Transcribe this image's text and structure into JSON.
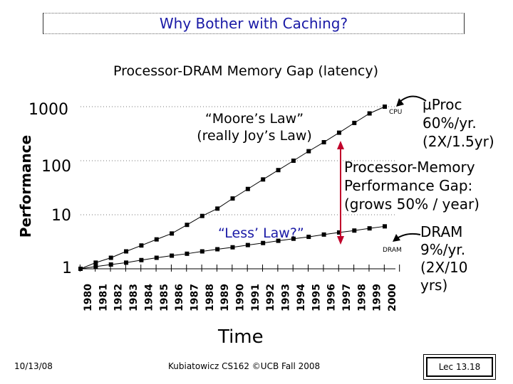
{
  "slide": {
    "title": "Why Bother with Caching?",
    "subtitle": "Processor-DRAM Memory Gap (latency)",
    "footer_date": "10/13/08",
    "footer_course": "Kubiatowicz CS162 ©UCB Fall 2008",
    "footer_lec": "Lec 13.18"
  },
  "annotations": {
    "moore_line1": "“Moore’s Law”",
    "moore_line2": "(really Joy’s Law)",
    "less_law": "“Less’ Law?”",
    "cpu_label": "CPU",
    "dram_label": "DRAM",
    "uproc_lines": [
      "µProc",
      "60%/yr.",
      "(2X/1.5yr)"
    ],
    "gap_lines": [
      "Processor-Memory",
      "Performance Gap:",
      "(grows 50% / year)"
    ],
    "dram_lines": [
      "DRAM",
      "9%/yr.",
      "(2X/10",
      "yrs)"
    ]
  },
  "chart_data": {
    "type": "line",
    "xlabel": "Time",
    "ylabel": "Performance",
    "scale": "log",
    "ylim": [
      1,
      1000
    ],
    "yticks": [
      "1",
      "10",
      "100",
      "1000"
    ],
    "grid": "dotted horizontal at 10, 100, 1000",
    "categories": [
      "1980",
      "1981",
      "1982",
      "1983",
      "1984",
      "1985",
      "1986",
      "1987",
      "1988",
      "1989",
      "1990",
      "1991",
      "1992",
      "1993",
      "1994",
      "1995",
      "1996",
      "1997",
      "1998",
      "1999",
      "2000"
    ],
    "series": [
      {
        "name": "CPU",
        "values": [
          1,
          1.3,
          1.6,
          2.1,
          2.7,
          3.5,
          4.5,
          6.5,
          9.5,
          13,
          20,
          30,
          45,
          67,
          100,
          150,
          220,
          330,
          500,
          750,
          1100
        ]
      },
      {
        "name": "DRAM",
        "values": [
          1,
          1.1,
          1.2,
          1.3,
          1.45,
          1.6,
          1.75,
          1.9,
          2.1,
          2.3,
          2.5,
          2.75,
          3,
          3.3,
          3.6,
          3.9,
          4.3,
          4.7,
          5.1,
          5.6,
          6.1
        ]
      }
    ],
    "colors": {
      "lines": "#000000",
      "gap_arrow": "#c0002a",
      "title": "#1a1aa6"
    }
  }
}
